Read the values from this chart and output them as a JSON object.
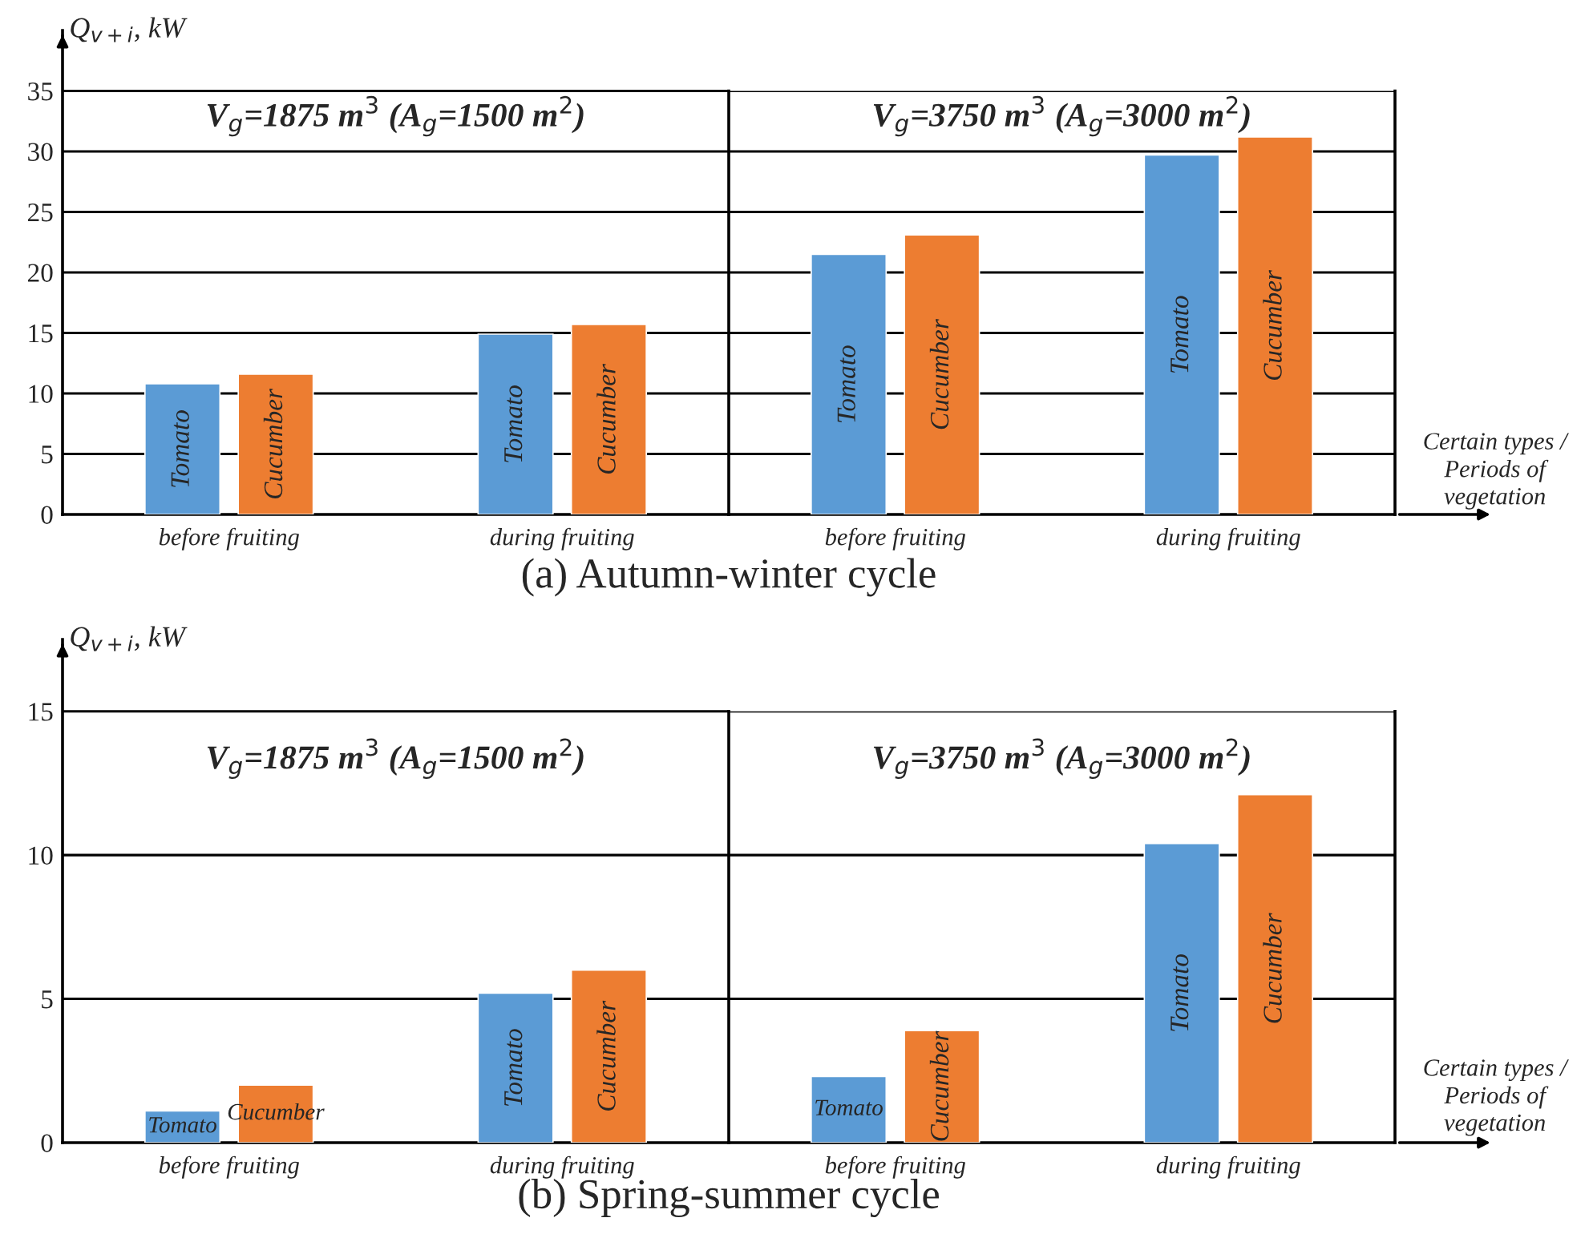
{
  "chart_data": [
    {
      "type": "bar",
      "title": "(a) Autumn-winter cycle",
      "ylabel": "Q$_{v+i}$, kW",
      "categories": [
        "before fruiting",
        "during fruiting"
      ],
      "series": [
        {
          "name": "Tomato",
          "color": "#5b9bd5",
          "values": [
            10.8,
            14.9
          ]
        },
        {
          "name": "Cucumber",
          "color": "#ed7d31",
          "values": [
            11.6,
            15.7
          ]
        }
      ],
      "ylim": [
        0,
        40
      ],
      "yticks": [
        0,
        5,
        10,
        15,
        20,
        25,
        30,
        35
      ],
      "grid": "y",
      "annotations": [
        "V$_{g}$=1875 m$^{3}$ (A$_{g}$=1500 m$^{2}$)"
      ]
    },
    {
      "type": "bar",
      "xlabel": "Certain types / Periods of vegetation",
      "categories": [
        "before fruiting",
        "during fruiting"
      ],
      "series": [
        {
          "name": "Tomato",
          "color": "#5b9bd5",
          "values": [
            21.5,
            29.7
          ]
        },
        {
          "name": "Cucumber",
          "color": "#ed7d31",
          "values": [
            23.1,
            31.2
          ]
        }
      ],
      "ylim": [
        0,
        35
      ],
      "yticks": [
        0,
        5,
        10,
        15,
        20,
        25,
        30,
        35
      ],
      "grid": "y",
      "tick_labels": "x",
      "annotations": [
        "V$_{g}$=3750 m$^{3}$ (A$_{g}$=3000 m$^{2}$)"
      ]
    },
    {
      "type": "bar",
      "title": "(b) Spring-summer cycle",
      "ylabel": "Q$_{v+i}$, kW",
      "categories": [
        "before fruiting",
        "during fruiting"
      ],
      "series": [
        {
          "name": "Tomato",
          "color": "#5b9bd5",
          "values": [
            1.1,
            5.2
          ]
        },
        {
          "name": "Cucumber",
          "color": "#ed7d31",
          "values": [
            2.0,
            6.0
          ]
        }
      ],
      "ylim": [
        0,
        17.5
      ],
      "yticks": [
        0,
        5,
        10,
        15
      ],
      "grid": "y",
      "annotations": [
        "V$_{g}$=1875 m$^{3}$ (A$_{g}$=1500 m$^{2}$)"
      ]
    },
    {
      "type": "bar",
      "xlabel": "Certain types / Periods of vegetation",
      "categories": [
        "before fruiting",
        "during fruiting"
      ],
      "series": [
        {
          "name": "Tomato",
          "color": "#5b9bd5",
          "values": [
            2.3,
            10.4
          ]
        },
        {
          "name": "Cucumber",
          "color": "#ed7d31",
          "values": [
            3.9,
            12.1
          ]
        }
      ],
      "ylim": [
        0,
        15
      ],
      "yticks": [
        0,
        5,
        10,
        15
      ],
      "grid": "y",
      "tick_labels": "x",
      "annotations": [
        "V$_{g}$=3750 m$^{3}$ (A$_{g}$=3000 m$^{2}$)"
      ]
    }
  ]
}
